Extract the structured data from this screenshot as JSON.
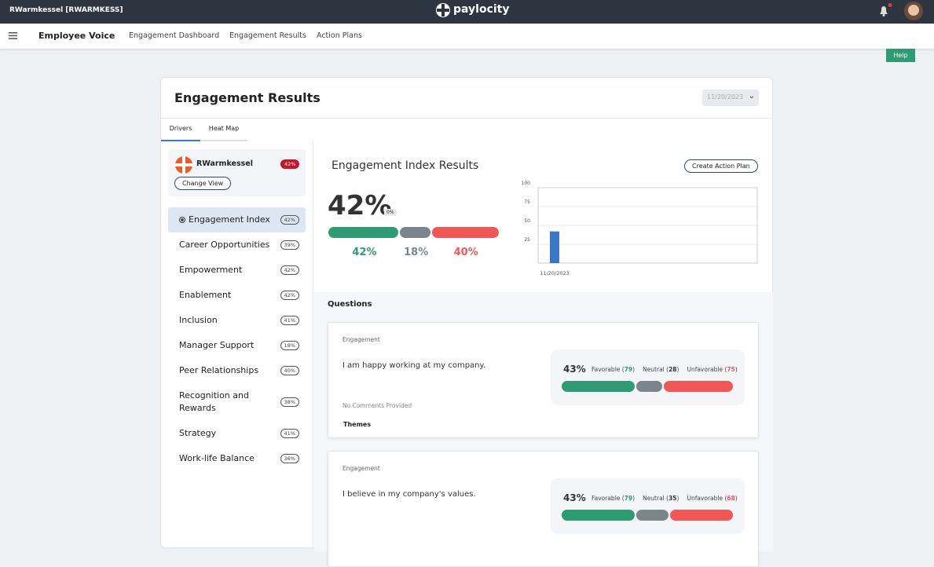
{
  "topbar": {
    "user": "RWarmkessel [RWARMKESS]",
    "logo": "paylocity"
  },
  "nav": {
    "app": "Employee Voice",
    "links": [
      "Engagement Dashboard",
      "Engagement Results",
      "Action Plans"
    ]
  },
  "help": "Help",
  "card": {
    "title": "Engagement Results",
    "date": "11/20/2023",
    "tabs": [
      "Drivers",
      "Heat Map"
    ]
  },
  "profile": {
    "name": "RWarmkessel",
    "badge": "42%",
    "button": "Change View"
  },
  "drivers": [
    {
      "name": "Engagement Index",
      "score": "42%"
    },
    {
      "name": "Career Opportunities",
      "score": "39%"
    },
    {
      "name": "Empowerment",
      "score": "42%"
    },
    {
      "name": "Enablement",
      "score": "42%"
    },
    {
      "name": "Inclusion",
      "score": "41%"
    },
    {
      "name": "Manager Support",
      "score": "18%"
    },
    {
      "name": "Peer Relationships",
      "score": "40%"
    },
    {
      "name": "Recognition and Rewards",
      "score": "38%"
    },
    {
      "name": "Strategy",
      "score": "41%"
    },
    {
      "name": "Work-life Balance",
      "score": "36%"
    }
  ],
  "index": {
    "heading": "Engagement Index Results",
    "button": "Create Action Plan",
    "score": "42%",
    "change": "0%",
    "breakdown": {
      "values": [
        42,
        18,
        40
      ],
      "value_labels": [
        "42%",
        "18%",
        "40%"
      ],
      "colors": [
        "#2e9b72",
        "#7c848c",
        "#f25757"
      ]
    }
  },
  "chart_data": {
    "type": "bar",
    "categories": [
      "11/20/2023"
    ],
    "values": [
      42
    ],
    "color": "#3a78c3",
    "ylim": [
      0,
      100
    ],
    "yticks": [
      25,
      50,
      75,
      100
    ],
    "grid": true
  },
  "questions": {
    "heading": "Questions",
    "labels": [
      "Favorable",
      "Neutral",
      "Unfavorable"
    ],
    "items": [
      {
        "category": "Engagement",
        "text": "I am happy working at my company.",
        "score": "43%",
        "counts": [
          79,
          28,
          75
        ],
        "comments": "No Comments Provided",
        "themes": "Themes"
      },
      {
        "category": "Engagement",
        "text": "I believe in my company's values.",
        "score": "43%",
        "counts": [
          79,
          35,
          68
        ]
      }
    ]
  }
}
